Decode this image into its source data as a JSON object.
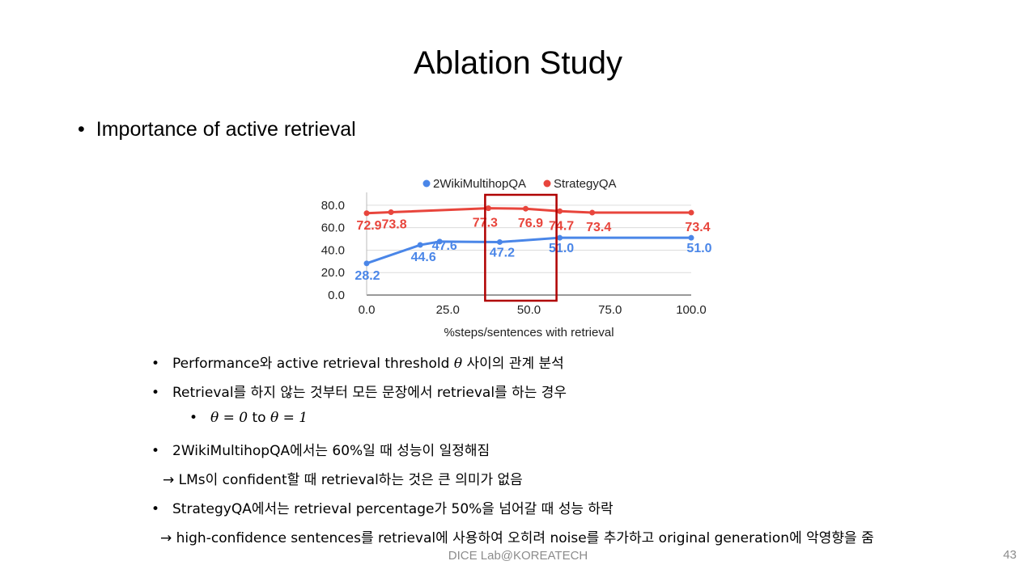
{
  "slide": {
    "title": "Ablation Study",
    "main_bullet": "Importance of active retrieval",
    "footer": "DICE Lab@KOREATECH",
    "page_number": "43"
  },
  "chart_data": {
    "type": "line",
    "x": [
      0,
      7.5,
      16.5,
      22.5,
      37.5,
      41,
      49,
      59.5,
      69.5,
      100
    ],
    "xlabel": "%steps/sentences with retrieval",
    "xticks": [
      "0.0",
      "25.0",
      "50.0",
      "75.0",
      "100.0"
    ],
    "xlim": [
      0,
      100
    ],
    "yticks": [
      "0.0",
      "20.0",
      "40.0",
      "60.0",
      "80.0"
    ],
    "ylim": [
      0,
      90
    ],
    "grid": true,
    "legend": "top",
    "series": [
      {
        "name": "2WikiMultihopQA",
        "color": "#4a86e8",
        "points": [
          [
            0,
            28.2
          ],
          [
            16.5,
            44.6
          ],
          [
            22.5,
            47.6
          ],
          [
            41,
            47.2
          ],
          [
            59.5,
            51.0
          ],
          [
            100,
            51.0
          ]
        ],
        "labels": [
          {
            "x": 0,
            "y": 28.2,
            "text": "28.2"
          },
          {
            "x": 16.5,
            "y": 44.6,
            "text": "44.6"
          },
          {
            "x": 22.5,
            "y": 47.6,
            "text": "47.6"
          },
          {
            "x": 41,
            "y": 47.2,
            "text": "47.2"
          },
          {
            "x": 59.5,
            "y": 51.0,
            "text": "51.0"
          },
          {
            "x": 100,
            "y": 51.0,
            "text": "51.0"
          }
        ]
      },
      {
        "name": "StrategyQA",
        "color": "#e8453c",
        "points": [
          [
            0,
            72.9
          ],
          [
            7.5,
            73.8
          ],
          [
            37.5,
            77.3
          ],
          [
            49,
            76.9
          ],
          [
            59.5,
            74.7
          ],
          [
            69.5,
            73.4
          ],
          [
            100,
            73.4
          ]
        ],
        "labels": [
          {
            "x": 0,
            "y": 72.9,
            "text": "72.9"
          },
          {
            "x": 7.5,
            "y": 73.8,
            "text": "73.8"
          },
          {
            "x": 37.5,
            "y": 77.3,
            "text": "77.3"
          },
          {
            "x": 49,
            "y": 76.9,
            "text": "76.9"
          },
          {
            "x": 59.5,
            "y": 74.7,
            "text": "74.7"
          },
          {
            "x": 69.5,
            "y": 73.4,
            "text": "73.4"
          },
          {
            "x": 100,
            "y": 73.4,
            "text": "73.4"
          }
        ]
      }
    ],
    "highlight": {
      "x_range": [
        36.5,
        58.5
      ],
      "color": "#b00000"
    }
  },
  "bullets": [
    {
      "pre": "Performance와 active retrieval threshold ",
      "math": "θ",
      "post": " 사이의 관계 분석"
    },
    {
      "text": "Retrieval를 하지 않는 것부터 모든 문장에서 retrieval를 하는 경우"
    },
    {
      "m1": "θ = 0",
      "mid": " to ",
      "m2": "θ = 1"
    },
    {
      "text": "2WikiMultihopQA에서는 60%일 때 성능이 일정해짐"
    },
    {
      "text": "→ LMs이 confident할 때 retrieval하는 것은 큰 의미가 없음"
    },
    {
      "text": "StrategyQA에서는 retrieval percentage가 50%을 넘어갈 때 성능 하락"
    },
    {
      "text": "→ high-confidence sentences를 retrieval에 사용하여 오히려 noise를 추가하고 original generation에 악영향을 줌"
    }
  ]
}
